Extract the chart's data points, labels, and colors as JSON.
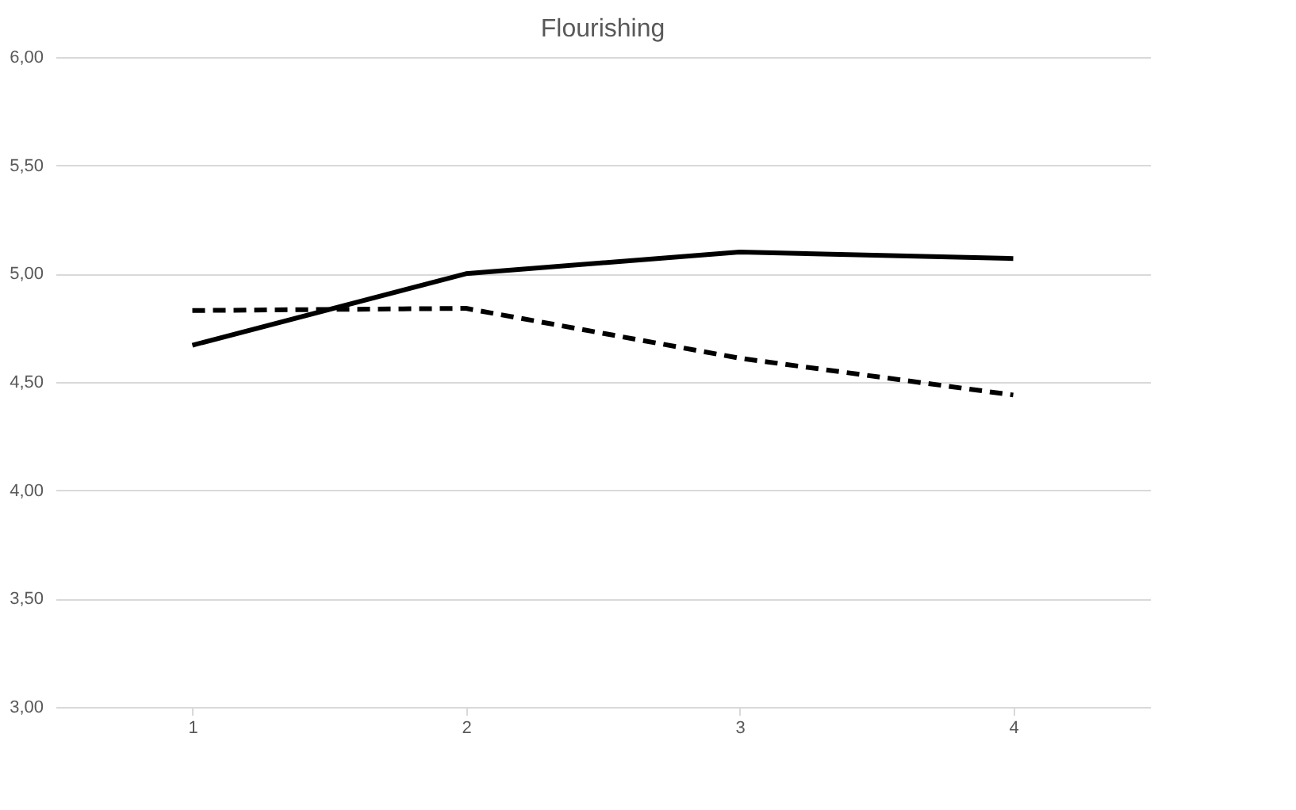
{
  "chart_data": {
    "type": "line",
    "title": "Flourishing",
    "categories": [
      "1",
      "2",
      "3",
      "4"
    ],
    "series": [
      {
        "color": "#000000",
        "line_style": "solid",
        "values": [
          4.67,
          5.0,
          5.1,
          5.07
        ]
      },
      {
        "color": "#000000",
        "line_style": "dashed",
        "values": [
          4.83,
          4.84,
          4.61,
          4.44
        ]
      }
    ],
    "ylim": [
      3,
      6
    ],
    "yticks": [
      {
        "value": 3,
        "label": "3,00"
      },
      {
        "value": 3.5,
        "label": "3,50"
      },
      {
        "value": 4,
        "label": "4,00"
      },
      {
        "value": 4.5,
        "label": "4,50"
      },
      {
        "value": 5,
        "label": "5,00"
      },
      {
        "value": 5.5,
        "label": "5,50"
      },
      {
        "value": 6,
        "label": "6,00"
      }
    ],
    "grid": "y",
    "marker": "none"
  }
}
